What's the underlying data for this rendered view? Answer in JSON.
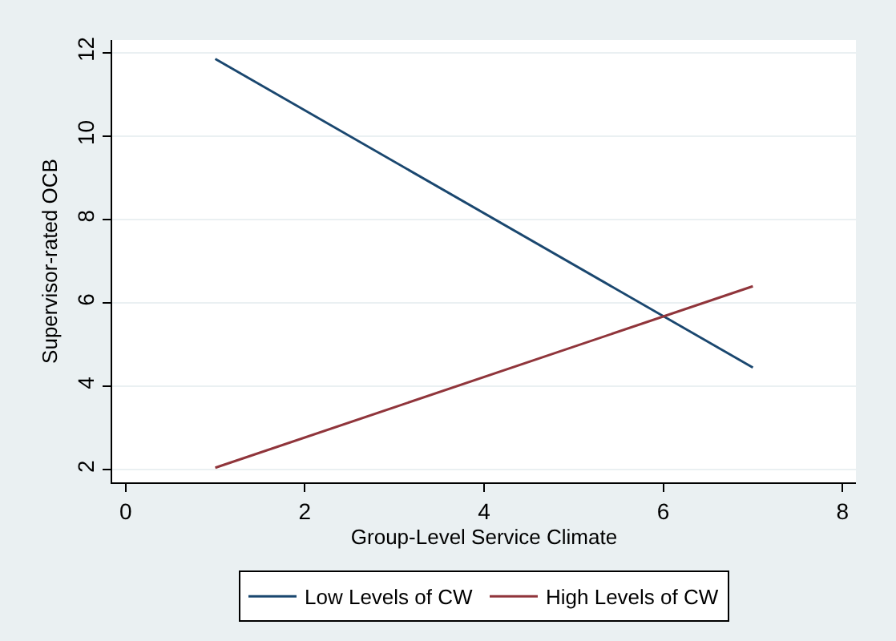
{
  "chart_data": {
    "type": "line",
    "xlabel": "Group-Level Service Climate",
    "ylabel": "Supervisor-rated OCB",
    "x": [
      1,
      7
    ],
    "series": [
      {
        "name": "Low Levels of CW",
        "color": "#1a476f",
        "values": [
          11.85,
          4.45
        ]
      },
      {
        "name": "High Levels of CW",
        "color": "#90353b",
        "values": [
          2.05,
          6.4
        ]
      }
    ],
    "xlim": [
      -0.15,
      8.15
    ],
    "xticks": [
      0,
      2,
      4,
      6,
      8
    ],
    "ylim": [
      1.7,
      12.3
    ],
    "yticks": [
      2,
      4,
      6,
      8,
      10,
      12
    ],
    "grid": "y",
    "legend": "bottom",
    "marker": "none",
    "line_style": "solid"
  }
}
